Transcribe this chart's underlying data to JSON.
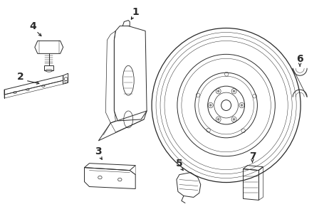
{
  "bg_color": "#ffffff",
  "line_color": "#2a2a2a",
  "fig_width": 4.62,
  "fig_height": 3.08,
  "dpi": 100
}
